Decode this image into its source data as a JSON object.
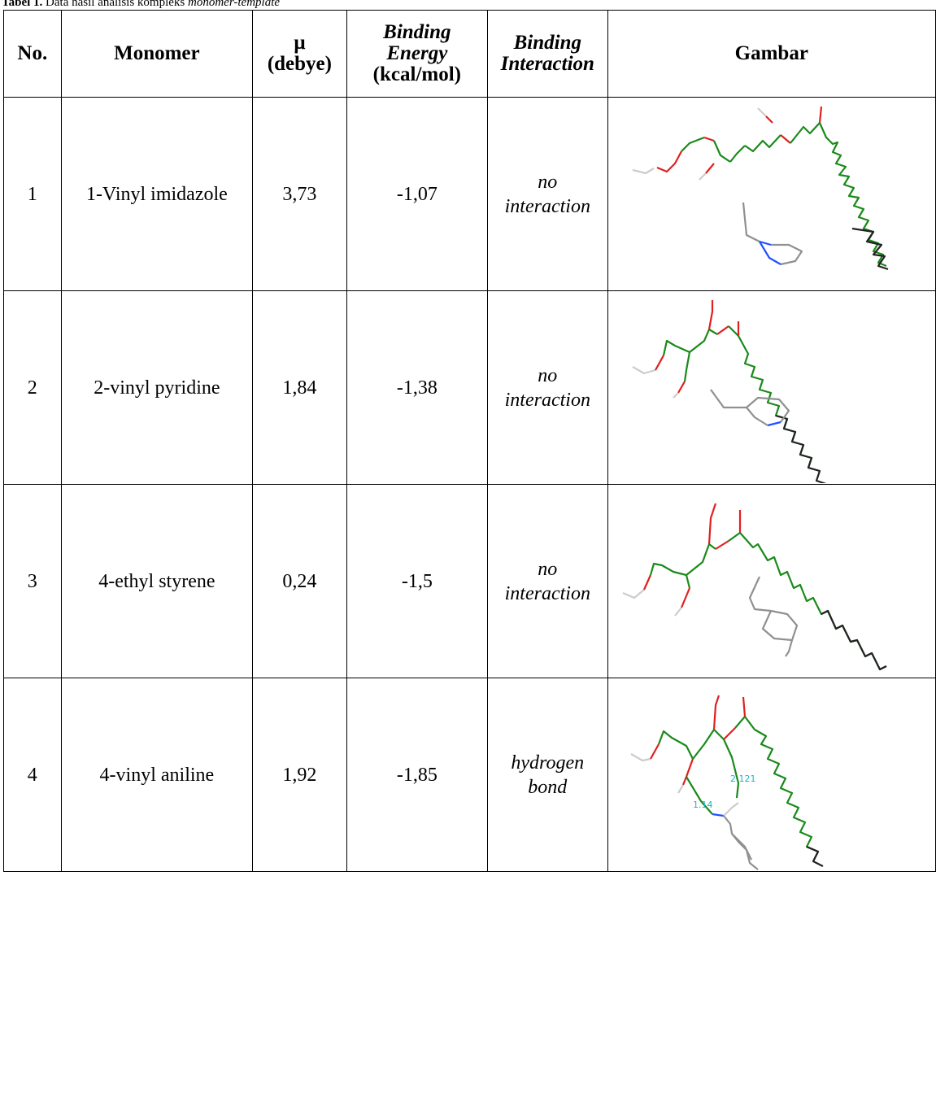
{
  "caption": {
    "label": "Tabel 1.",
    "text": "Data hasil analisis kompleks",
    "italic_text": "monomer-template"
  },
  "headers": {
    "no": "No.",
    "monomer": "Monomer",
    "mu_line1": "μ",
    "mu_line2": "(debye)",
    "be_line1": "Binding",
    "be_line2": "Energy",
    "be_line3": "(kcal/mol)",
    "bi_line1": "Binding",
    "bi_line2": "Interaction",
    "image": "Gambar"
  },
  "rows": [
    {
      "no": "1",
      "monomer": "1-Vinyl imidazole",
      "mu": "3,73",
      "energy": "-1,07",
      "interaction_line1": "no",
      "interaction_line2": "interaction",
      "image": "1-vinyl-imidazole-complex-structure"
    },
    {
      "no": "2",
      "monomer": "2-vinyl pyridine",
      "mu": "1,84",
      "energy": "-1,38",
      "interaction_line1": "no",
      "interaction_line2": "interaction",
      "image": "2-vinyl-pyridine-complex-structure"
    },
    {
      "no": "3",
      "monomer": "4-ethyl styrene",
      "mu": "0,24",
      "energy": "-1,5",
      "interaction_line1": "no",
      "interaction_line2": "interaction",
      "image": "4-ethyl-styrene-complex-structure"
    },
    {
      "no": "4",
      "monomer": "4-vinyl aniline",
      "mu": "1,92",
      "energy": "-1,85",
      "interaction_line1": "hydrogen",
      "interaction_line2": "bond",
      "image": "4-vinyl-aniline-complex-structure",
      "bond_labels": [
        "2.121",
        "1.14"
      ]
    }
  ],
  "colors": {
    "backbone": "#1a8a1a",
    "oxygen": "#e02020",
    "nitrogen": "#2050ff",
    "monomer": "#909090",
    "hbond_label": "#19b6c4",
    "tail": "#222222"
  }
}
